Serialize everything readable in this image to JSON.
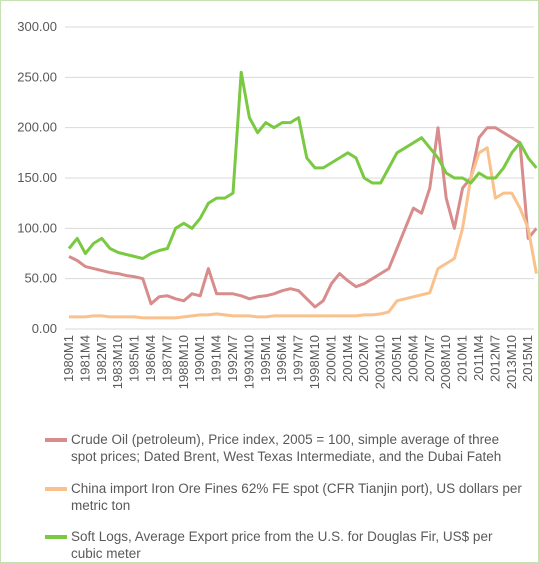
{
  "chart_data": {
    "type": "line",
    "categories": [
      "1980M1",
      null,
      "1981M4",
      null,
      "1982M7",
      null,
      "1983M10",
      null,
      "1985M1",
      null,
      "1986M4",
      null,
      "1987M7",
      null,
      "1988M10",
      null,
      "1990M1",
      null,
      "1991M4",
      null,
      "1992M7",
      null,
      "1993M10",
      null,
      "1995M1",
      null,
      "1996M4",
      null,
      "1997M7",
      null,
      "1998M10",
      null,
      "2000M1",
      null,
      "2001M4",
      null,
      "2002M7",
      null,
      "2003M10",
      null,
      "2005M1",
      null,
      "2006M4",
      null,
      "2007M7",
      null,
      "2008M10",
      null,
      "2010M1",
      null,
      "2011M4",
      null,
      "2012M7",
      null,
      "2013M10",
      null,
      "2015M1",
      null
    ],
    "series": [
      {
        "name": "Crude Oil (petroleum), Price index, 2005 = 100, simple average of three spot prices; Dated Brent, West Texas Intermediate, and the Dubai Fateh",
        "color": "#d98c8c",
        "values": [
          72,
          68,
          62,
          60,
          58,
          56,
          55,
          53,
          52,
          50,
          25,
          32,
          33,
          30,
          28,
          35,
          33,
          60,
          35,
          35,
          35,
          33,
          30,
          32,
          33,
          35,
          38,
          40,
          38,
          30,
          22,
          28,
          45,
          55,
          48,
          42,
          45,
          50,
          55,
          60,
          80,
          100,
          120,
          115,
          140,
          200,
          130,
          100,
          140,
          150,
          190,
          200,
          200,
          195,
          190,
          185,
          90,
          100
        ]
      },
      {
        "name": "China import Iron Ore Fines 62% FE spot (CFR Tianjin port), US dollars per metric ton",
        "color": "#f9c18c",
        "values": [
          12,
          12,
          12,
          13,
          13,
          12,
          12,
          12,
          12,
          11,
          11,
          11,
          11,
          11,
          12,
          13,
          14,
          14,
          15,
          14,
          13,
          13,
          13,
          12,
          12,
          13,
          13,
          13,
          13,
          13,
          13,
          13,
          13,
          13,
          13,
          13,
          14,
          14,
          15,
          17,
          28,
          30,
          32,
          34,
          36,
          60,
          65,
          70,
          100,
          150,
          175,
          180,
          130,
          135,
          135,
          120,
          100,
          55
        ]
      },
      {
        "name": "Soft Logs, Average Export price from the U.S. for Douglas Fir, US$ per cubic meter",
        "color": "#7ac943",
        "values": [
          80,
          90,
          75,
          85,
          90,
          80,
          76,
          74,
          72,
          70,
          75,
          78,
          80,
          100,
          105,
          100,
          110,
          125,
          130,
          130,
          135,
          255,
          210,
          195,
          205,
          200,
          205,
          205,
          210,
          170,
          160,
          160,
          165,
          170,
          175,
          170,
          150,
          145,
          145,
          160,
          175,
          180,
          185,
          190,
          180,
          170,
          155,
          150,
          150,
          145,
          155,
          150,
          150,
          160,
          175,
          185,
          170,
          160
        ]
      }
    ],
    "ylim": [
      0,
      300
    ],
    "yticks": [
      {
        "value": 0,
        "label": "0.00"
      },
      {
        "value": 50,
        "label": "50.00"
      },
      {
        "value": 100,
        "label": "100.00"
      },
      {
        "value": 150,
        "label": "150.00"
      },
      {
        "value": 200,
        "label": "200.00"
      },
      {
        "value": 250,
        "label": "250.00"
      },
      {
        "value": 300,
        "label": "300.00"
      }
    ],
    "grid": true
  }
}
